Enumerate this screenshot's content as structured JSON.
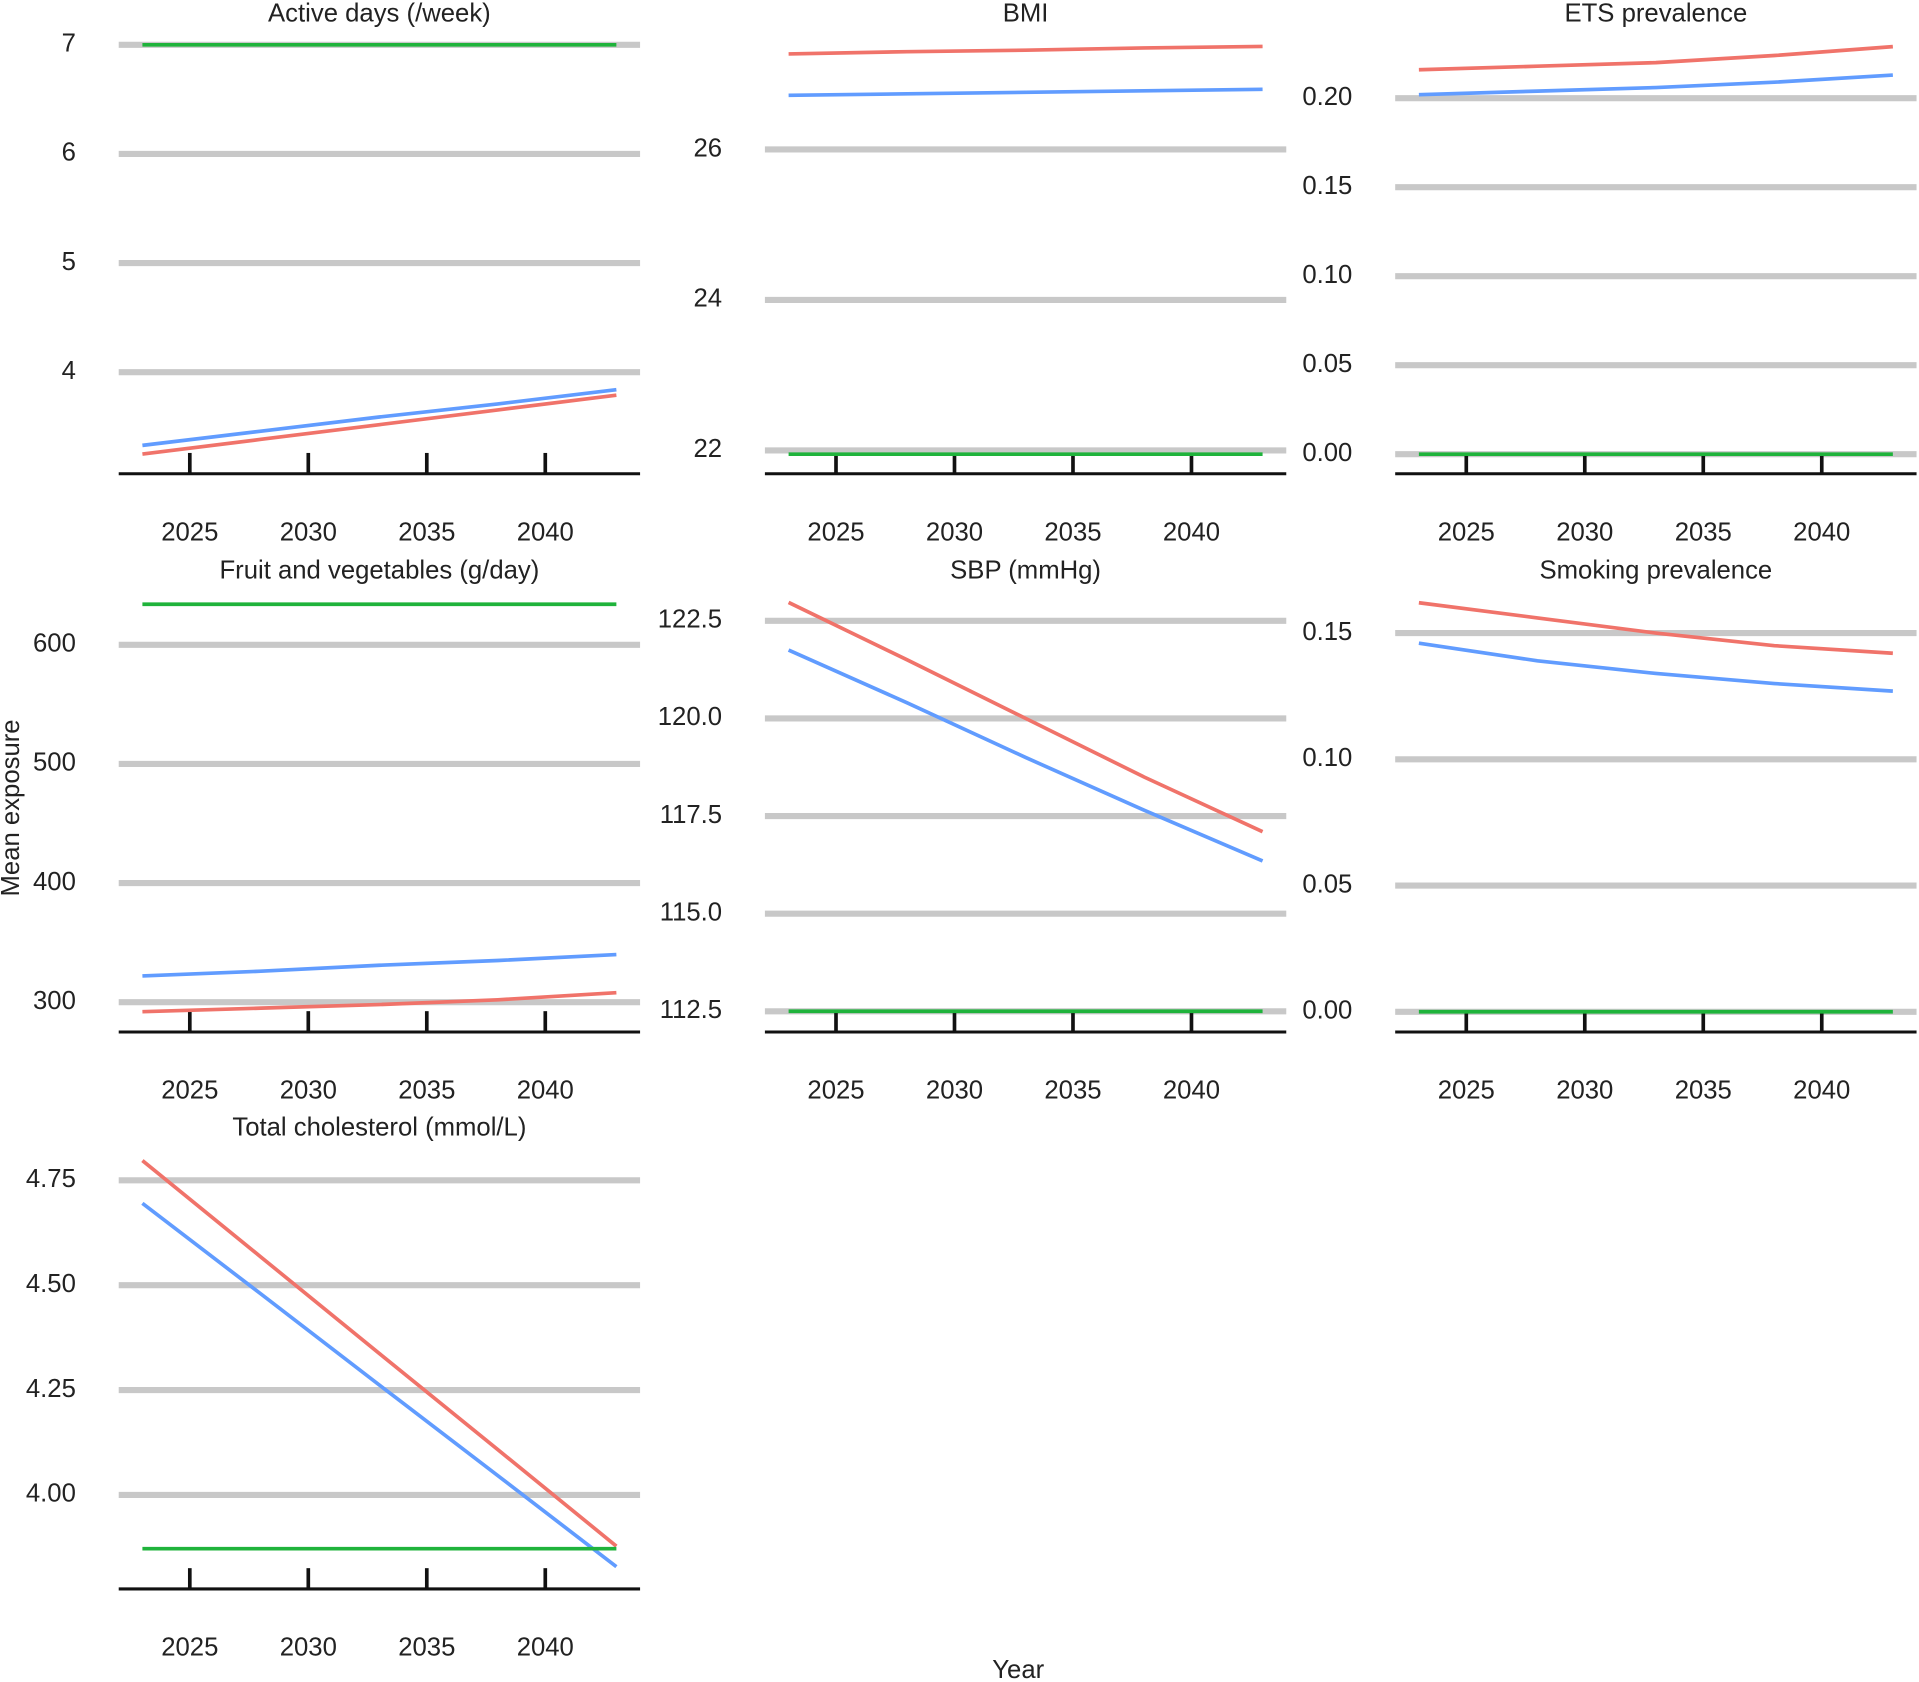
{
  "ylabel": "Mean exposure",
  "xlabel": "Year",
  "chart_data": [
    {
      "type": "line",
      "title": "Active days (/week)",
      "x": [
        2023,
        2028,
        2033,
        2038,
        2043
      ],
      "xlim": [
        2022,
        2044
      ],
      "xticks": [
        2025,
        2030,
        2035,
        2040
      ],
      "ylim": [
        3.07,
        7.13
      ],
      "yticks": [
        4,
        5,
        6,
        7
      ],
      "grid": true,
      "series": [
        {
          "color": "#f0736a",
          "values": [
            3.25,
            3.385,
            3.52,
            3.655,
            3.79
          ]
        },
        {
          "color": "#619cff",
          "values": [
            3.33,
            3.46,
            3.59,
            3.71,
            3.84
          ]
        },
        {
          "color": "#1fb33b",
          "values": [
            7,
            7,
            7,
            7,
            7
          ]
        }
      ]
    },
    {
      "type": "line",
      "title": "BMI",
      "x": [
        2023,
        2028,
        2033,
        2038,
        2043
      ],
      "xlim": [
        2022,
        2044
      ],
      "xticks": [
        2025,
        2030,
        2035,
        2040
      ],
      "ylim": [
        21.69,
        27.58
      ],
      "yticks": [
        22,
        24,
        26
      ],
      "grid": true,
      "series": [
        {
          "color": "#f0736a",
          "values": [
            27.27,
            27.3,
            27.32,
            27.35,
            27.37
          ]
        },
        {
          "color": "#619cff",
          "values": [
            26.72,
            26.74,
            26.76,
            26.78,
            26.8
          ]
        },
        {
          "color": "#1fb33b",
          "values": [
            21.95,
            21.95,
            21.95,
            21.95,
            21.95
          ]
        }
      ]
    },
    {
      "type": "line",
      "title": "ETS prevalence",
      "x": [
        2023,
        2028,
        2033,
        2038,
        2043
      ],
      "xlim": [
        2022,
        2044
      ],
      "xticks": [
        2025,
        2030,
        2035,
        2040
      ],
      "ylim": [
        -0.011,
        0.238
      ],
      "yticks": [
        {
          "value": 0,
          "label": "0.00"
        },
        {
          "value": 0.05,
          "label": "0.05"
        },
        {
          "value": 0.1,
          "label": "0.10"
        },
        {
          "value": 0.15,
          "label": "0.15"
        },
        {
          "value": 0.2,
          "label": "0.20"
        }
      ],
      "grid": true,
      "series": [
        {
          "color": "#f0736a",
          "values": [
            0.216,
            0.218,
            0.22,
            0.224,
            0.229
          ]
        },
        {
          "color": "#619cff",
          "values": [
            0.202,
            0.204,
            0.206,
            0.209,
            0.213
          ]
        },
        {
          "color": "#1fb33b",
          "values": [
            0,
            0,
            0,
            0,
            0
          ]
        }
      ]
    },
    {
      "type": "line",
      "title": "Fruit and vegetables (g/day)",
      "x": [
        2023,
        2028,
        2033,
        2038,
        2043
      ],
      "xlim": [
        2022,
        2044
      ],
      "xticks": [
        2025,
        2030,
        2035,
        2040
      ],
      "ylim": [
        275,
        648
      ],
      "yticks": [
        300,
        400,
        500,
        600
      ],
      "grid": true,
      "series": [
        {
          "color": "#f0736a",
          "values": [
            292,
            295,
            298,
            302,
            308
          ]
        },
        {
          "color": "#619cff",
          "values": [
            322,
            326,
            331,
            335,
            340
          ]
        },
        {
          "color": "#1fb33b",
          "values": [
            634,
            634,
            634,
            634,
            634
          ]
        }
      ]
    },
    {
      "type": "line",
      "title": "SBP (mmHg)",
      "x": [
        2023,
        2028,
        2033,
        2038,
        2043
      ],
      "xlim": [
        2022,
        2044
      ],
      "xticks": [
        2025,
        2030,
        2035,
        2040
      ],
      "ylim": [
        111.97,
        123.35
      ],
      "yticks": [
        112.5,
        {
          "value": 115,
          "label": "115.0"
        },
        117.5,
        {
          "value": 120,
          "label": "120.0"
        },
        122.5
      ],
      "grid": true,
      "series": [
        {
          "color": "#f0736a",
          "values": [
            122.97,
            121.5,
            120.0,
            118.5,
            117.1
          ]
        },
        {
          "color": "#619cff",
          "values": [
            121.75,
            120.4,
            119.0,
            117.65,
            116.35
          ]
        },
        {
          "color": "#1fb33b",
          "values": [
            112.5,
            112.5,
            112.5,
            112.5,
            112.5
          ]
        }
      ]
    },
    {
      "type": "line",
      "title": "Smoking prevalence",
      "x": [
        2023,
        2028,
        2033,
        2038,
        2043
      ],
      "xlim": [
        2022,
        2044
      ],
      "xticks": [
        2025,
        2030,
        2035,
        2040
      ],
      "ylim": [
        -0.008,
        0.168
      ],
      "yticks": [
        {
          "value": 0,
          "label": "0.00"
        },
        0.05,
        {
          "value": 0.1,
          "label": "0.10"
        },
        0.15
      ],
      "grid": true,
      "series": [
        {
          "color": "#f0736a",
          "values": [
            0.162,
            0.156,
            0.15,
            0.145,
            0.142
          ]
        },
        {
          "color": "#619cff",
          "values": [
            0.146,
            0.139,
            0.134,
            0.13,
            0.127
          ]
        },
        {
          "color": "#1fb33b",
          "values": [
            0,
            0,
            0,
            0,
            0
          ]
        }
      ]
    },
    {
      "type": "line",
      "title": "Total cholesterol (mmol/L)",
      "x": [
        2023,
        2028,
        2033,
        2038,
        2043
      ],
      "xlim": [
        2022,
        2044
      ],
      "xticks": [
        2025,
        2030,
        2035,
        2040
      ],
      "ylim": [
        3.776,
        4.835
      ],
      "yticks": [
        {
          "value": 4,
          "label": "4.00"
        },
        4.25,
        {
          "value": 4.5,
          "label": "4.50"
        },
        4.75
      ],
      "grid": true,
      "series": [
        {
          "color": "#f0736a",
          "values": [
            4.797,
            4.567,
            4.337,
            4.108,
            3.878
          ]
        },
        {
          "color": "#619cff",
          "values": [
            4.695,
            4.479,
            4.262,
            4.046,
            3.829
          ]
        },
        {
          "color": "#1fb33b",
          "values": [
            3.872,
            3.872,
            3.872,
            3.872,
            3.872
          ]
        }
      ]
    }
  ]
}
